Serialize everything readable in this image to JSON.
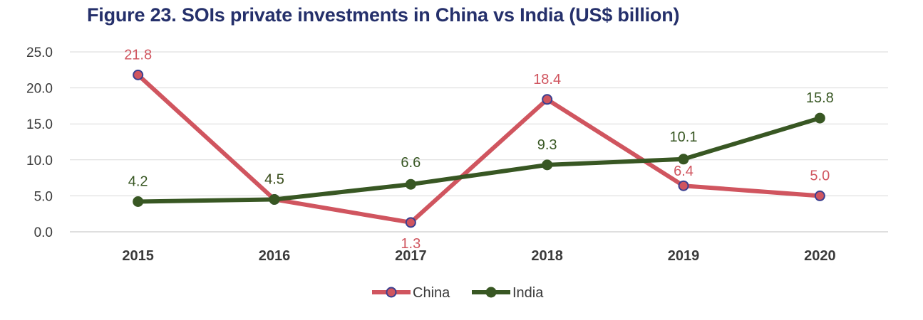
{
  "chart_data": {
    "type": "line",
    "title": "Figure 23. SOIs private investments in China vs India (US$ billion)",
    "xlabel": "",
    "ylabel": "",
    "categories": [
      "2015",
      "2016",
      "2017",
      "2018",
      "2019",
      "2020"
    ],
    "ylim": [
      0,
      25
    ],
    "yticks": [
      "0.0",
      "5.0",
      "10.0",
      "15.0",
      "20.0",
      "25.0"
    ],
    "grid": true,
    "legend_position": "bottom",
    "series": [
      {
        "name": "China",
        "color": "#d0555f",
        "marker_fill": "#d0555f",
        "marker_edge": "#3b3f8f",
        "values": [
          21.8,
          4.5,
          1.3,
          18.4,
          6.4,
          5.0
        ],
        "labels": [
          "21.8",
          "4.5",
          "1.3",
          "18.4",
          "6.4",
          "5.0"
        ]
      },
      {
        "name": "India",
        "color": "#385723",
        "marker_fill": "#385723",
        "marker_edge": "#385723",
        "values": [
          4.2,
          4.5,
          6.6,
          9.3,
          10.1,
          15.8
        ],
        "labels": [
          "4.2",
          "4.5",
          "6.6",
          "9.3",
          "10.1",
          "15.8"
        ]
      }
    ]
  }
}
